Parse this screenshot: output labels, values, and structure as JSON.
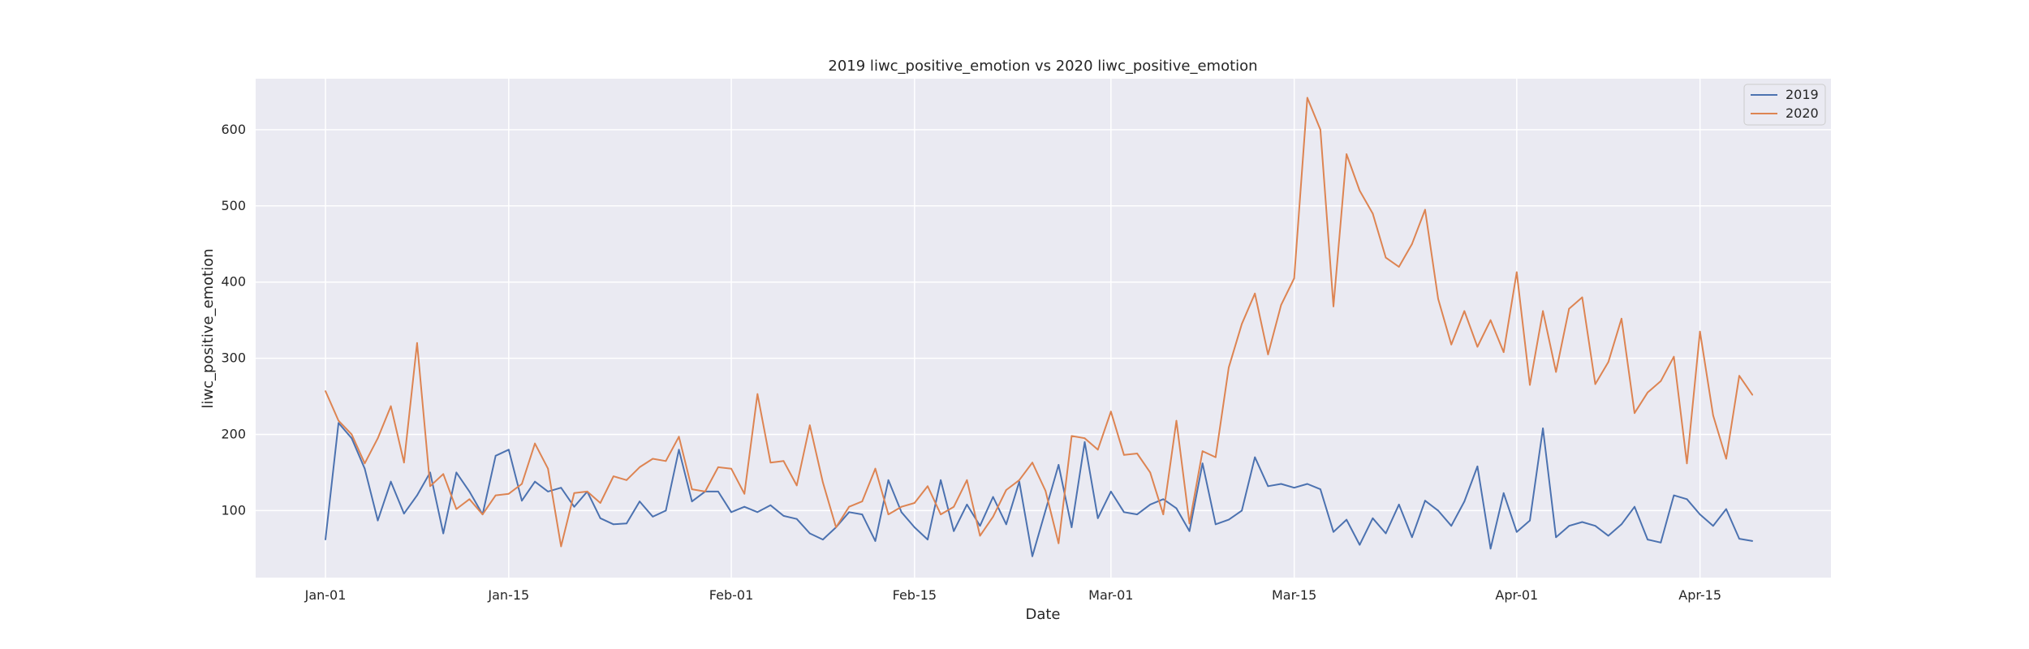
{
  "chart_data": {
    "type": "line",
    "title": "2019 liwc_positive_emotion vs 2020 liwc_positive_emotion",
    "xlabel": "Date",
    "ylabel": "liwc_positive_emotion",
    "x_ticks": [
      "Jan-01",
      "Jan-15",
      "Feb-01",
      "Feb-15",
      "Mar-01",
      "Mar-15",
      "Apr-01",
      "Apr-15"
    ],
    "y_ticks": [
      "100",
      "200",
      "300",
      "400",
      "500",
      "600"
    ],
    "ylim": [
      12,
      667
    ],
    "x_start": "Jan-01",
    "x_end": "Apr-22",
    "grid": true,
    "legend_position": "top-right",
    "series": [
      {
        "name": "2019",
        "color": "#4c72b0",
        "values": [
          62,
          215,
          195,
          155,
          87,
          138,
          96,
          120,
          150,
          70,
          150,
          125,
          95,
          172,
          180,
          113,
          138,
          125,
          130,
          105,
          125,
          90,
          82,
          83,
          112,
          92,
          100,
          180,
          112,
          125,
          125,
          98,
          105,
          98,
          107,
          93,
          89,
          70,
          62,
          78,
          98,
          95,
          60,
          140,
          98,
          78,
          62,
          140,
          73,
          108,
          80,
          118,
          82,
          138,
          40,
          100,
          160,
          78,
          190,
          90,
          125,
          98,
          95,
          108,
          115,
          103,
          73,
          162,
          82,
          88,
          100,
          170,
          132,
          135,
          130,
          135,
          128,
          72,
          88,
          55,
          90,
          70,
          108,
          65,
          113,
          100,
          80,
          112,
          158,
          50,
          123,
          72,
          87,
          208,
          65,
          80,
          85,
          80,
          67,
          82,
          105,
          62,
          58,
          120,
          115,
          95,
          80,
          102,
          63,
          60
        ]
      },
      {
        "name": "2020",
        "color": "#dd8452",
        "values": [
          257,
          218,
          200,
          162,
          195,
          237,
          163,
          320,
          132,
          148,
          102,
          115,
          95,
          120,
          122,
          135,
          188,
          155,
          53,
          123,
          125,
          110,
          145,
          140,
          157,
          168,
          165,
          197,
          128,
          125,
          157,
          155,
          122,
          253,
          163,
          165,
          133,
          212,
          137,
          78,
          105,
          112,
          155,
          95,
          105,
          110,
          132,
          95,
          105,
          140,
          67,
          92,
          127,
          140,
          163,
          126,
          57,
          198,
          195,
          180,
          230,
          173,
          175,
          150,
          95,
          218,
          83,
          178,
          170,
          288,
          345,
          385,
          305,
          370,
          405,
          642,
          600,
          368,
          568,
          520,
          490,
          432,
          420,
          450,
          495,
          378,
          318,
          362,
          315,
          350,
          308,
          413,
          265,
          362,
          282,
          365,
          380,
          266,
          295,
          352,
          228,
          255,
          270,
          302,
          162,
          335,
          225,
          168,
          277,
          252
        ]
      }
    ]
  }
}
